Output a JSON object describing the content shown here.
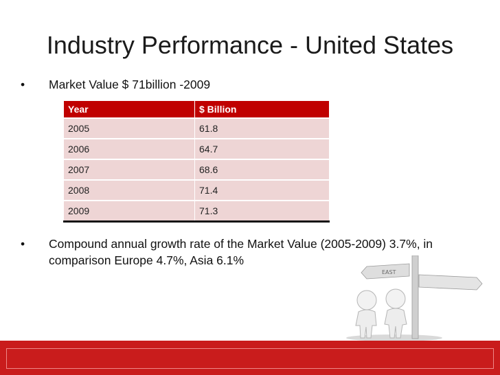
{
  "slide": {
    "title": "Industry Performance - United States",
    "bullet_char": "•",
    "bullets": [
      {
        "text": "Market Value $ 71billion -2009"
      },
      {
        "lines": [
          "Compound annual growth rate of the Market Value (2005-2009) 3.7%, in",
          "comparison Europe 4.7%, Asia 6.1%"
        ]
      }
    ]
  },
  "table": {
    "headers": [
      "Year",
      "$ Billion"
    ],
    "rows": [
      [
        "2005",
        "61.8"
      ],
      [
        "2006",
        "64.7"
      ],
      [
        "2007",
        "68.6"
      ],
      [
        "2008",
        "71.4"
      ],
      [
        "2009",
        "71.3"
      ]
    ]
  },
  "illustration": {
    "sign_text": "EAST"
  },
  "colors": {
    "header_bg": "#c00000",
    "row_bg": "#eed5d5",
    "footer": "#c91c1c"
  }
}
